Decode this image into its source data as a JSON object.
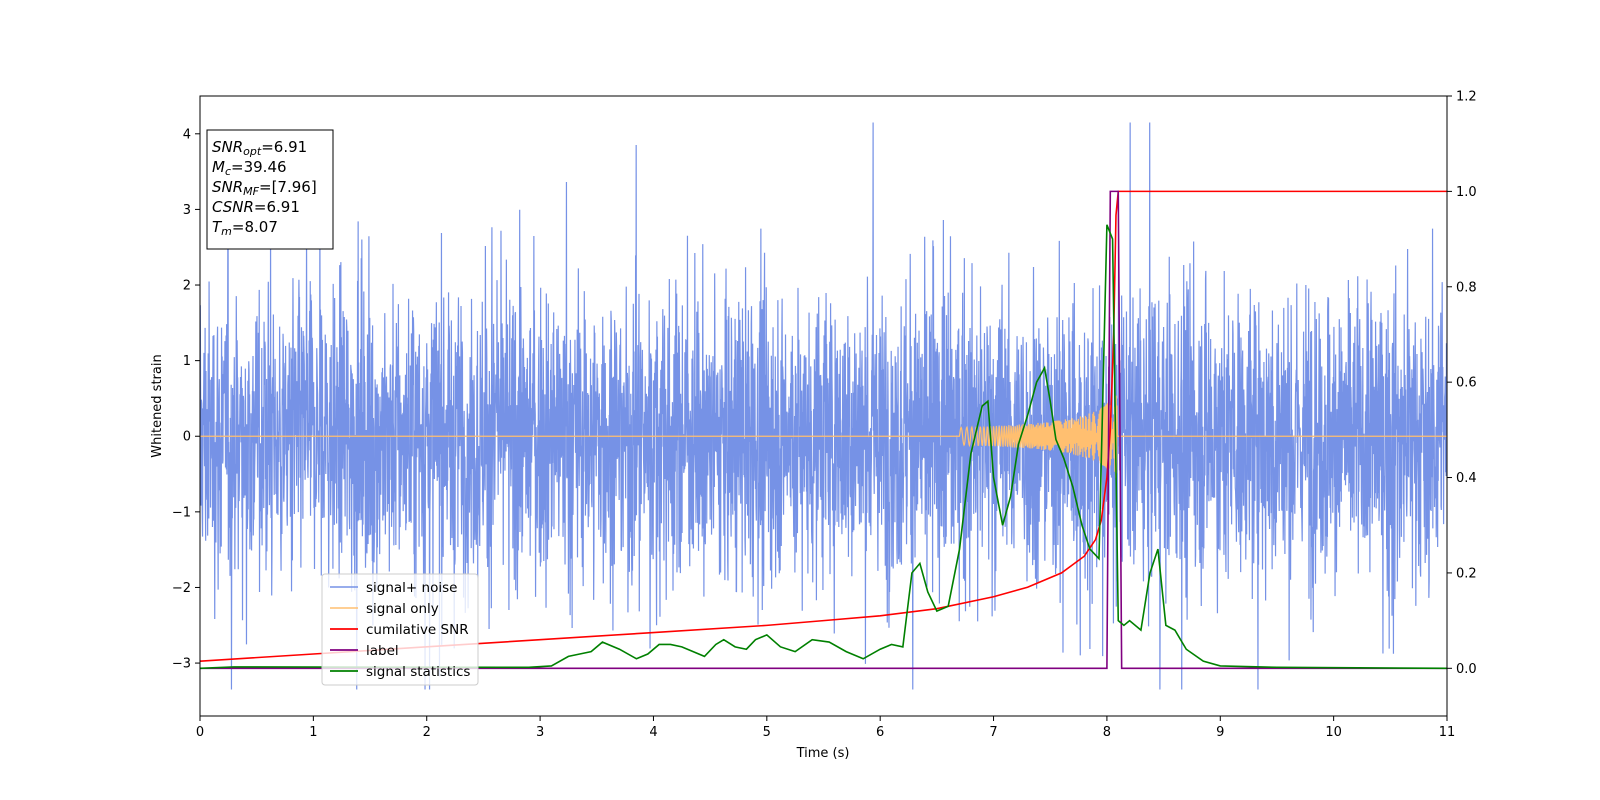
{
  "chart_data": {
    "type": "line",
    "xlabel": "Time (s)",
    "ylabel": "Whitened strain",
    "xlim": [
      0,
      11
    ],
    "ylim": [
      -3.7,
      4.5
    ],
    "y2lim": [
      -0.1,
      1.2
    ],
    "xticks": [
      0,
      1,
      2,
      3,
      4,
      5,
      6,
      7,
      8,
      9,
      10,
      11
    ],
    "yticks": [
      -3,
      -2,
      -1,
      0,
      1,
      2,
      3,
      4
    ],
    "y2ticks": [
      0.0,
      0.2,
      0.4,
      0.6,
      0.8,
      1.0,
      1.2
    ],
    "legend_position": "lower-left",
    "annotation": {
      "lines": [
        {
          "sym": "SNR",
          "sub": "opt",
          "text": "=6.91"
        },
        {
          "sym": "M",
          "sub": "c",
          "text": "=39.46"
        },
        {
          "sym": "SNR",
          "sub": "MF",
          "text": "=[7.96]"
        },
        {
          "sym": "CSNR",
          "sub": "",
          "text": "=6.91"
        },
        {
          "sym": "T",
          "sub": "m",
          "text": "=8.07"
        }
      ]
    },
    "series": [
      {
        "name": "signal+ noise",
        "axis": "left",
        "color": "#7692e6",
        "description": "whitened noise, approx. +/-2.5 with spikes to about 4.2",
        "noise_envelope": 2.5,
        "peak_max": 4.15,
        "peak_min": -3.35
      },
      {
        "name": "signal only",
        "axis": "left",
        "color": "#ffbf70",
        "chirp": {
          "start": 6.7,
          "merger": 8.07,
          "max_amplitude": 0.55
        }
      },
      {
        "name": "cumilative SNR",
        "axis": "right",
        "color": "#ff0000",
        "x": [
          0,
          1,
          2,
          3,
          4,
          5,
          5.5,
          6,
          6.5,
          7,
          7.3,
          7.6,
          7.8,
          7.9,
          7.95,
          8.0,
          8.03,
          8.06,
          8.08,
          8.1,
          11
        ],
        "y": [
          0.015,
          0.03,
          0.045,
          0.06,
          0.075,
          0.09,
          0.1,
          0.11,
          0.125,
          0.15,
          0.17,
          0.2,
          0.235,
          0.27,
          0.31,
          0.4,
          0.5,
          0.7,
          0.95,
          1.0,
          1.0
        ]
      },
      {
        "name": "label",
        "axis": "right",
        "color": "#800080",
        "x": [
          0,
          8.0,
          8.03,
          8.1,
          8.13,
          11
        ],
        "y": [
          0,
          0,
          1,
          1,
          0,
          0
        ]
      },
      {
        "name": "signal statistics",
        "axis": "right",
        "color": "#008000",
        "x": [
          0,
          0.3,
          2.9,
          3.1,
          3.25,
          3.35,
          3.45,
          3.55,
          3.7,
          3.85,
          3.95,
          4.05,
          4.15,
          4.25,
          4.35,
          4.45,
          4.55,
          4.62,
          4.72,
          4.82,
          4.9,
          5.0,
          5.12,
          5.25,
          5.4,
          5.55,
          5.7,
          5.85,
          6.0,
          6.1,
          6.2,
          6.28,
          6.35,
          6.42,
          6.5,
          6.6,
          6.7,
          6.8,
          6.9,
          6.95,
          7.0,
          7.08,
          7.15,
          7.22,
          7.3,
          7.38,
          7.45,
          7.5,
          7.55,
          7.62,
          7.7,
          7.78,
          7.85,
          7.93,
          8.0,
          8.05,
          8.1,
          8.15,
          8.2,
          8.3,
          8.38,
          8.45,
          8.52,
          8.6,
          8.7,
          8.85,
          9.0,
          9.5,
          11
        ],
        "y": [
          0.0,
          0.003,
          0.002,
          0.005,
          0.025,
          0.03,
          0.035,
          0.055,
          0.04,
          0.02,
          0.03,
          0.05,
          0.05,
          0.045,
          0.035,
          0.025,
          0.05,
          0.06,
          0.045,
          0.04,
          0.06,
          0.07,
          0.045,
          0.035,
          0.06,
          0.055,
          0.035,
          0.02,
          0.04,
          0.05,
          0.045,
          0.2,
          0.22,
          0.16,
          0.12,
          0.13,
          0.25,
          0.45,
          0.55,
          0.56,
          0.4,
          0.3,
          0.36,
          0.47,
          0.53,
          0.6,
          0.63,
          0.56,
          0.48,
          0.44,
          0.38,
          0.3,
          0.25,
          0.23,
          0.93,
          0.9,
          0.1,
          0.09,
          0.1,
          0.08,
          0.2,
          0.25,
          0.09,
          0.08,
          0.04,
          0.015,
          0.005,
          0.002,
          0.0
        ]
      }
    ]
  }
}
